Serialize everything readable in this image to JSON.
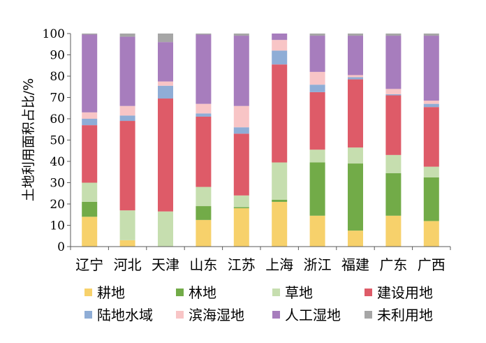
{
  "chart_data": {
    "type": "bar",
    "stacked": true,
    "title": "",
    "xlabel": "",
    "ylabel": "土地利用面积占比/%",
    "ylim": [
      0,
      100
    ],
    "yticks": [
      0,
      10,
      20,
      30,
      40,
      50,
      60,
      70,
      80,
      90,
      100
    ],
    "grid": false,
    "legend_position": "bottom",
    "categories": [
      "辽宁",
      "河北",
      "天津",
      "山东",
      "江苏",
      "上海",
      "浙江",
      "福建",
      "广东",
      "广西"
    ],
    "series": [
      {
        "name": "耕地",
        "color": "#f7d16b",
        "values": [
          14,
          3,
          0,
          12.5,
          18,
          21,
          14.5,
          7.5,
          14.5,
          12
        ]
      },
      {
        "name": "林地",
        "color": "#72ab48",
        "values": [
          7,
          0,
          0,
          6.5,
          0.5,
          1,
          25,
          31.5,
          20,
          20.5
        ]
      },
      {
        "name": "草地",
        "color": "#c6deaf",
        "values": [
          9,
          14,
          16.5,
          9,
          5.5,
          17.5,
          6,
          7.5,
          8.5,
          5
        ]
      },
      {
        "name": "建设用地",
        "color": "#de5b68",
        "values": [
          27,
          42,
          53,
          33,
          29,
          46,
          27,
          32,
          28,
          28
        ]
      },
      {
        "name": "陆地水域",
        "color": "#8fadd6",
        "values": [
          3,
          2.5,
          6,
          1.5,
          3,
          6.5,
          3.5,
          1,
          0.5,
          1.5
        ]
      },
      {
        "name": "滨海湿地",
        "color": "#f8c5c6",
        "values": [
          3,
          4.5,
          2,
          4.5,
          10,
          5,
          6,
          1,
          2.5,
          1.5
        ]
      },
      {
        "name": "人工湿地",
        "color": "#a77dbd",
        "values": [
          36.5,
          32.5,
          18.5,
          32.5,
          33,
          3,
          17,
          18.5,
          25,
          30.5
        ]
      },
      {
        "name": "未利用地",
        "color": "#a6a6a6",
        "values": [
          0.5,
          1.5,
          4,
          0.5,
          1,
          0,
          1,
          1,
          1,
          1
        ]
      }
    ]
  }
}
